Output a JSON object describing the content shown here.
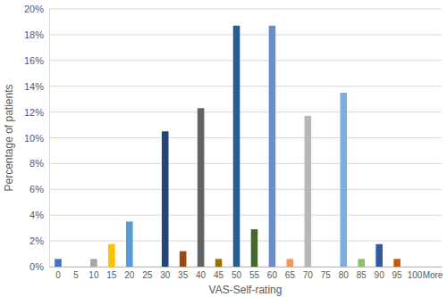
{
  "chart_data": {
    "type": "bar",
    "x_label": "VAS-Self-rating",
    "y_label": "Percentage of patients",
    "categories": [
      "0",
      "5",
      "10",
      "15",
      "20",
      "25",
      "30",
      "35",
      "40",
      "45",
      "50",
      "55",
      "60",
      "65",
      "70",
      "75",
      "80",
      "85",
      "90",
      "95",
      "100",
      "More"
    ],
    "values": [
      0.6,
      0,
      0.6,
      1.75,
      3.5,
      0,
      10.5,
      1.2,
      12.3,
      0.6,
      18.7,
      2.9,
      18.7,
      0.6,
      11.7,
      0,
      13.5,
      0.6,
      1.75,
      0.6,
      0,
      0
    ],
    "colors": [
      "#4472c4",
      "#ed7d31",
      "#a5a5a5",
      "#ffc000",
      "#5b9bd5",
      "#70ad47",
      "#264478",
      "#9e480e",
      "#636363",
      "#997300",
      "#255e91",
      "#43682b",
      "#698ed0",
      "#f1975a",
      "#b7b7b7",
      "#ffcd33",
      "#7cafdd",
      "#8cc168",
      "#335aa1",
      "#c65911",
      "#848484",
      "#cc9a00"
    ],
    "ylim": [
      0,
      20
    ],
    "yticks": [
      {
        "value": 0,
        "label": "0%"
      },
      {
        "value": 2,
        "label": "2%"
      },
      {
        "value": 4,
        "label": "4%"
      },
      {
        "value": 6,
        "label": "6%"
      },
      {
        "value": 8,
        "label": "8%"
      },
      {
        "value": 10,
        "label": "10%"
      },
      {
        "value": 12,
        "label": "12%"
      },
      {
        "value": 14,
        "label": "14%"
      },
      {
        "value": 16,
        "label": "16%"
      },
      {
        "value": 18,
        "label": "18%"
      },
      {
        "value": 20,
        "label": "20%"
      }
    ],
    "grid": true
  }
}
